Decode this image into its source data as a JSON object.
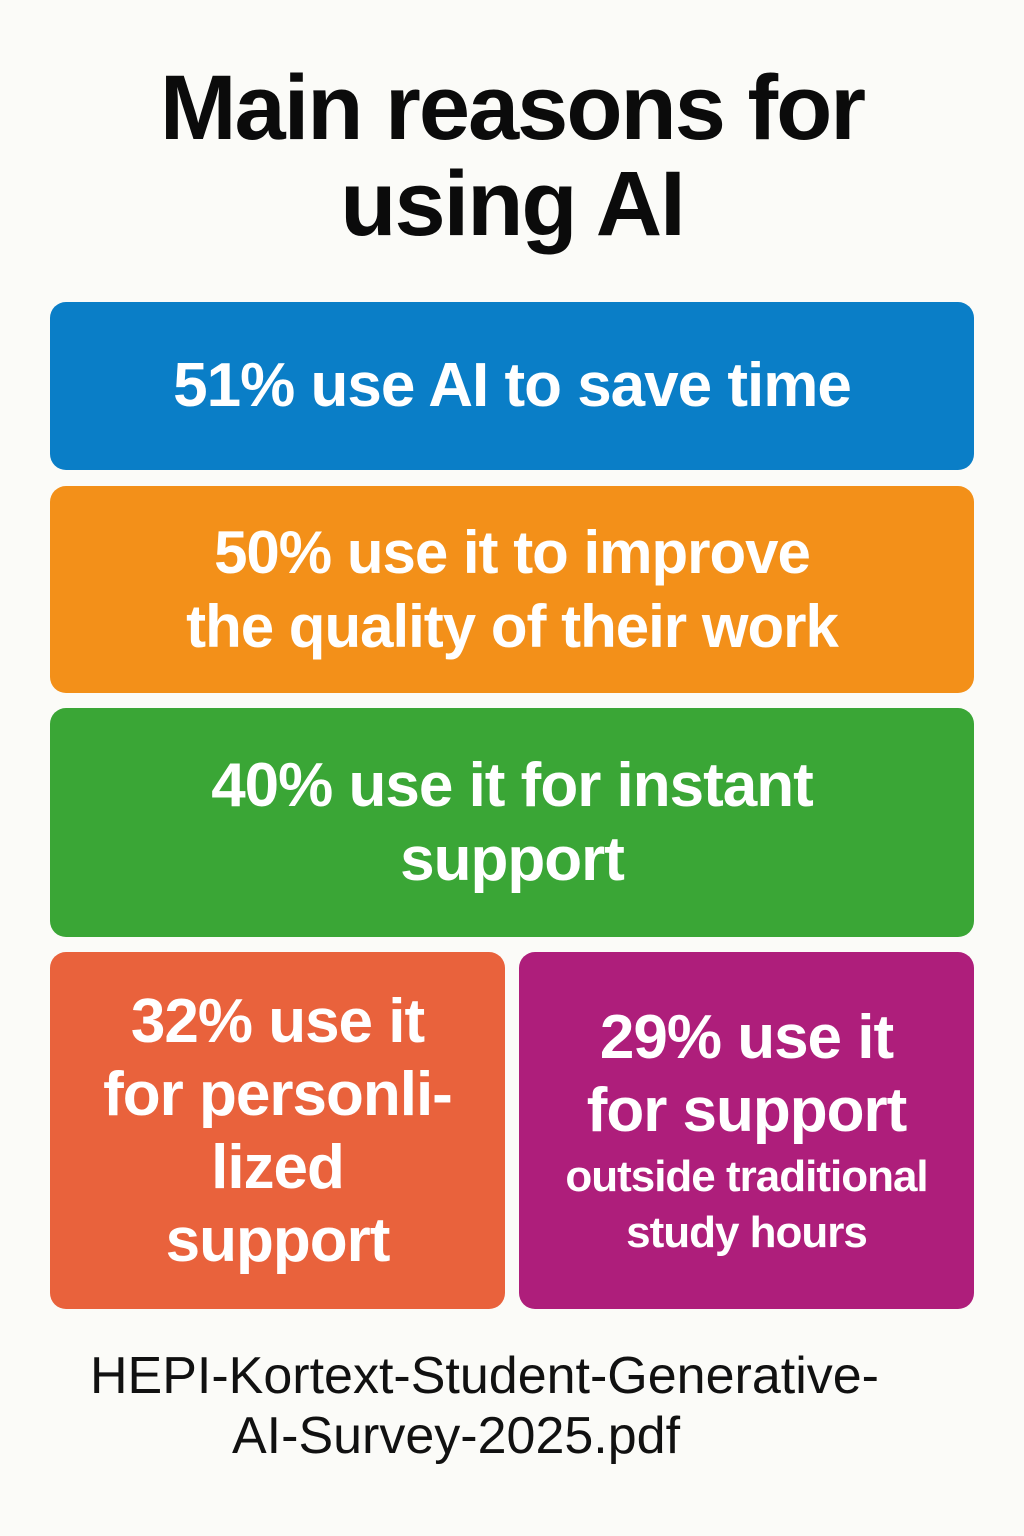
{
  "title": {
    "line1": "Main reasons for",
    "line2": "using AI"
  },
  "colors": {
    "background": "#fbfbf8",
    "card_blue": "#0a7ec7",
    "card_orange": "#f39019",
    "card_green": "#3aa636",
    "card_red_orange": "#e9623c",
    "card_purple": "#ae1e7b",
    "text_dark": "#0b0b0b",
    "text_light": "#ffffff"
  },
  "cards": [
    {
      "percent": 51,
      "lines": [
        "51% use AI to save time"
      ]
    },
    {
      "percent": 50,
      "lines": [
        "50% use it to improve",
        "the quality of their work"
      ]
    },
    {
      "percent": 40,
      "lines": [
        "40% use it for instant",
        "support"
      ]
    },
    {
      "percent": 32,
      "lines": [
        "32% use it",
        "for personli-",
        "lized",
        "support"
      ]
    },
    {
      "percent": 29,
      "lines": [
        "29% use it",
        "for support"
      ],
      "sub_lines": [
        "outside traditional",
        "study hours"
      ]
    }
  ],
  "source": {
    "line1": "HEPI-Kortext-Student-Generative-",
    "line2": "AI-Survey-2025.pdf"
  }
}
